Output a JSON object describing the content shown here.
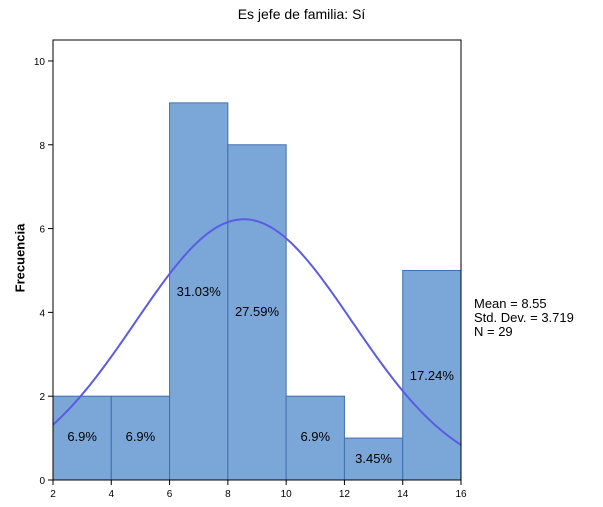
{
  "chart_data": {
    "type": "bar",
    "title": "Es jefe de familia: Sí",
    "xlabel": "",
    "ylabel": "Frecuencia",
    "bins": [
      {
        "x0": 2,
        "x1": 4,
        "count": 2,
        "label": "6.9%"
      },
      {
        "x0": 4,
        "x1": 6,
        "count": 2,
        "label": "6.9%"
      },
      {
        "x0": 6,
        "x1": 8,
        "count": 9,
        "label": "31.03%"
      },
      {
        "x0": 8,
        "x1": 10,
        "count": 8,
        "label": "27.59%"
      },
      {
        "x0": 10,
        "x1": 12,
        "count": 2,
        "label": "6.9%"
      },
      {
        "x0": 12,
        "x1": 14,
        "count": 1,
        "label": "3.45%"
      },
      {
        "x0": 14,
        "x1": 16,
        "count": 5,
        "label": "17.24%"
      }
    ],
    "xlim": [
      2,
      16
    ],
    "ylim": [
      0,
      10.5
    ],
    "xticks": [
      "2",
      "4",
      "6",
      "8",
      "10",
      "12",
      "14",
      "16"
    ],
    "yticks": [
      "0",
      "2",
      "4",
      "6",
      "8",
      "10"
    ],
    "normal_curve": {
      "mean": 8.55,
      "std": 3.719,
      "n": 29,
      "bin_width": 2
    },
    "stats": {
      "mean": "Mean = 8.55",
      "std": "Std. Dev. = 3.719",
      "n": "N = 29"
    },
    "colors": {
      "bar_fill": "#7BA7D8",
      "bar_stroke": "#3F6FB0",
      "curve": "#5B5BE6"
    }
  }
}
